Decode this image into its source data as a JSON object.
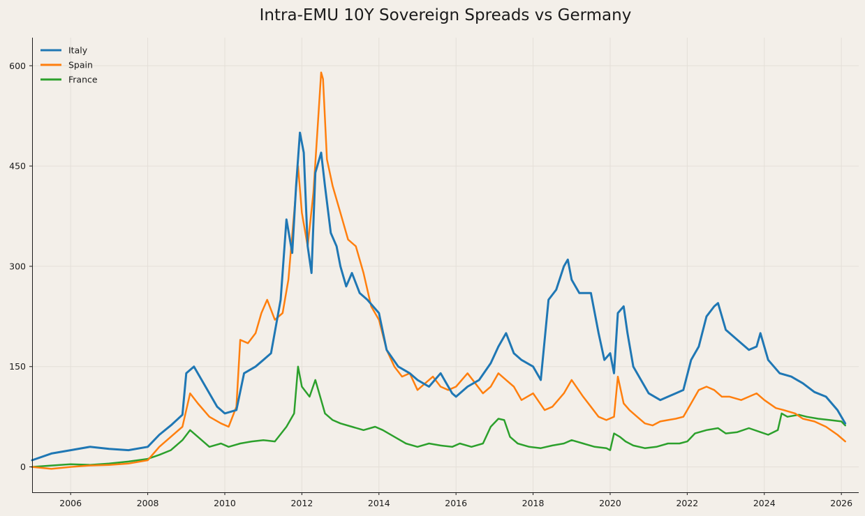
{
  "chart_data": {
    "type": "line",
    "title": "Intra-EMU 10Y Sovereign Spreads vs Germany",
    "xlabel": "",
    "ylabel": "",
    "xlim": [
      2005.0,
      2026.45
    ],
    "ylim": [
      -38,
      642
    ],
    "x_ticks": [
      2006,
      2008,
      2010,
      2012,
      2014,
      2016,
      2018,
      2020,
      2022,
      2024,
      2026
    ],
    "y_ticks": [
      0,
      150,
      300,
      450,
      600
    ],
    "grid": true,
    "legend_position": "top-left",
    "series": [
      {
        "name": "Italy",
        "color": "#1f77b4",
        "x": [
          2005.0,
          2005.5,
          2006.0,
          2006.5,
          2007.0,
          2007.5,
          2008.0,
          2008.3,
          2008.6,
          2008.9,
          2009.0,
          2009.2,
          2009.5,
          2009.8,
          2010.0,
          2010.3,
          2010.5,
          2010.8,
          2011.0,
          2011.2,
          2011.45,
          2011.6,
          2011.75,
          2011.85,
          2011.95,
          2012.05,
          2012.15,
          2012.25,
          2012.35,
          2012.5,
          2012.6,
          2012.75,
          2012.9,
          2013.0,
          2013.15,
          2013.3,
          2013.5,
          2013.7,
          2014.0,
          2014.2,
          2014.5,
          2014.8,
          2015.0,
          2015.3,
          2015.6,
          2015.9,
          2016.0,
          2016.3,
          2016.6,
          2016.9,
          2017.1,
          2017.3,
          2017.5,
          2017.7,
          2018.0,
          2018.2,
          2018.4,
          2018.6,
          2018.8,
          2018.9,
          2019.0,
          2019.2,
          2019.5,
          2019.7,
          2019.85,
          2020.0,
          2020.1,
          2020.2,
          2020.35,
          2020.45,
          2020.6,
          2020.8,
          2021.0,
          2021.3,
          2021.5,
          2021.7,
          2021.9,
          2022.1,
          2022.3,
          2022.5,
          2022.7,
          2022.8,
          2023.0,
          2023.3,
          2023.6,
          2023.8,
          2023.9,
          2024.1,
          2024.4,
          2024.7,
          2025.0,
          2025.3,
          2025.6,
          2025.9,
          2026.1
        ],
        "values": [
          10,
          20,
          25,
          30,
          27,
          25,
          30,
          48,
          62,
          78,
          140,
          150,
          120,
          90,
          80,
          85,
          140,
          150,
          160,
          170,
          250,
          370,
          320,
          420,
          500,
          470,
          330,
          290,
          440,
          470,
          420,
          350,
          330,
          300,
          270,
          290,
          260,
          250,
          230,
          175,
          150,
          140,
          130,
          120,
          140,
          110,
          105,
          120,
          130,
          155,
          180,
          200,
          170,
          160,
          150,
          130,
          250,
          265,
          300,
          310,
          280,
          260,
          260,
          200,
          160,
          170,
          140,
          230,
          240,
          200,
          150,
          130,
          110,
          100,
          105,
          110,
          115,
          160,
          180,
          225,
          240,
          245,
          205,
          190,
          175,
          180,
          200,
          160,
          140,
          135,
          125,
          112,
          105,
          85,
          65
        ]
      },
      {
        "name": "Spain",
        "color": "#ff7f0e",
        "x": [
          2005.0,
          2005.5,
          2006.0,
          2006.5,
          2007.0,
          2007.5,
          2008.0,
          2008.3,
          2008.6,
          2008.9,
          2009.1,
          2009.3,
          2009.6,
          2009.9,
          2010.1,
          2010.3,
          2010.4,
          2010.6,
          2010.8,
          2010.95,
          2011.1,
          2011.3,
          2011.5,
          2011.65,
          2011.8,
          2011.9,
          2012.0,
          2012.15,
          2012.3,
          2012.4,
          2012.5,
          2012.55,
          2012.65,
          2012.8,
          2013.0,
          2013.2,
          2013.4,
          2013.6,
          2013.8,
          2014.0,
          2014.2,
          2014.4,
          2014.6,
          2014.8,
          2015.0,
          2015.2,
          2015.4,
          2015.6,
          2015.8,
          2016.0,
          2016.3,
          2016.5,
          2016.7,
          2016.9,
          2017.1,
          2017.3,
          2017.5,
          2017.7,
          2018.0,
          2018.3,
          2018.5,
          2018.8,
          2019.0,
          2019.3,
          2019.5,
          2019.7,
          2019.9,
          2020.1,
          2020.2,
          2020.35,
          2020.5,
          2020.7,
          2020.9,
          2021.1,
          2021.3,
          2021.5,
          2021.7,
          2021.9,
          2022.1,
          2022.3,
          2022.5,
          2022.7,
          2022.9,
          2023.1,
          2023.4,
          2023.6,
          2023.8,
          2024.0,
          2024.3,
          2024.5,
          2024.8,
          2025.0,
          2025.3,
          2025.6,
          2025.9,
          2026.1
        ],
        "values": [
          0,
          -3,
          0,
          2,
          3,
          5,
          10,
          30,
          45,
          60,
          110,
          95,
          75,
          65,
          60,
          90,
          190,
          185,
          200,
          230,
          250,
          220,
          230,
          280,
          380,
          450,
          380,
          330,
          410,
          500,
          590,
          580,
          460,
          420,
          380,
          340,
          330,
          290,
          240,
          220,
          175,
          150,
          135,
          140,
          115,
          125,
          135,
          120,
          115,
          120,
          140,
          125,
          110,
          120,
          140,
          130,
          120,
          100,
          110,
          85,
          90,
          110,
          130,
          105,
          90,
          75,
          70,
          75,
          135,
          95,
          85,
          75,
          65,
          62,
          68,
          70,
          72,
          75,
          95,
          115,
          120,
          115,
          105,
          105,
          100,
          105,
          110,
          100,
          88,
          85,
          80,
          72,
          68,
          60,
          48,
          38
        ]
      },
      {
        "name": "France",
        "color": "#2ca02c",
        "x": [
          2005.0,
          2005.5,
          2006.0,
          2006.5,
          2007.0,
          2007.5,
          2008.0,
          2008.3,
          2008.6,
          2008.9,
          2009.1,
          2009.3,
          2009.6,
          2009.9,
          2010.1,
          2010.4,
          2010.7,
          2011.0,
          2011.3,
          2011.6,
          2011.8,
          2011.9,
          2012.0,
          2012.2,
          2012.35,
          2012.5,
          2012.6,
          2012.8,
          2013.0,
          2013.3,
          2013.6,
          2013.9,
          2014.1,
          2014.4,
          2014.7,
          2015.0,
          2015.3,
          2015.6,
          2015.9,
          2016.1,
          2016.4,
          2016.7,
          2016.9,
          2017.1,
          2017.25,
          2017.4,
          2017.6,
          2017.9,
          2018.2,
          2018.5,
          2018.8,
          2019.0,
          2019.3,
          2019.6,
          2019.9,
          2020.0,
          2020.1,
          2020.25,
          2020.4,
          2020.6,
          2020.9,
          2021.2,
          2021.5,
          2021.8,
          2022.0,
          2022.2,
          2022.5,
          2022.8,
          2023.0,
          2023.3,
          2023.6,
          2023.9,
          2024.1,
          2024.35,
          2024.45,
          2024.6,
          2024.9,
          2025.1,
          2025.4,
          2025.7,
          2026.0,
          2026.1
        ],
        "values": [
          0,
          2,
          4,
          3,
          5,
          8,
          12,
          18,
          25,
          40,
          55,
          45,
          30,
          35,
          30,
          35,
          38,
          40,
          38,
          60,
          80,
          150,
          120,
          105,
          130,
          100,
          80,
          70,
          65,
          60,
          55,
          60,
          55,
          45,
          35,
          30,
          35,
          32,
          30,
          35,
          30,
          35,
          60,
          72,
          70,
          45,
          35,
          30,
          28,
          32,
          35,
          40,
          35,
          30,
          28,
          25,
          50,
          45,
          38,
          32,
          28,
          30,
          35,
          35,
          38,
          50,
          55,
          58,
          50,
          52,
          58,
          52,
          48,
          55,
          80,
          75,
          78,
          75,
          72,
          70,
          68,
          62
        ]
      }
    ]
  }
}
